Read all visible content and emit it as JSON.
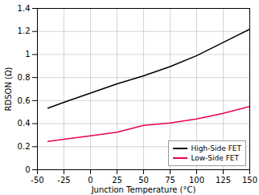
{
  "chart_data": {
    "type": "line",
    "xlabel": "Junction Temperature (°C)",
    "ylabel": "RDSON (Ω)",
    "x": [
      -40,
      -25,
      0,
      25,
      50,
      75,
      100,
      125,
      150
    ],
    "series": [
      {
        "name": "High-Side FET",
        "color": "#000000",
        "values": [
          0.535,
          0.585,
          0.665,
          0.745,
          0.815,
          0.895,
          0.99,
          1.105,
          1.22
        ]
      },
      {
        "name": "Low-Side FET",
        "color": "#e8005a",
        "values": [
          0.245,
          0.265,
          0.295,
          0.325,
          0.385,
          0.405,
          0.44,
          0.49,
          0.55
        ]
      }
    ],
    "xlim": [
      -50,
      150
    ],
    "ylim": [
      0,
      1.4
    ],
    "xticks": [
      -50,
      -25,
      0,
      25,
      50,
      75,
      100,
      125,
      150
    ],
    "yticks": [
      0,
      0.2,
      0.4,
      0.6,
      0.8,
      1,
      1.2,
      1.4
    ],
    "grid": true,
    "legend": "lower right"
  }
}
